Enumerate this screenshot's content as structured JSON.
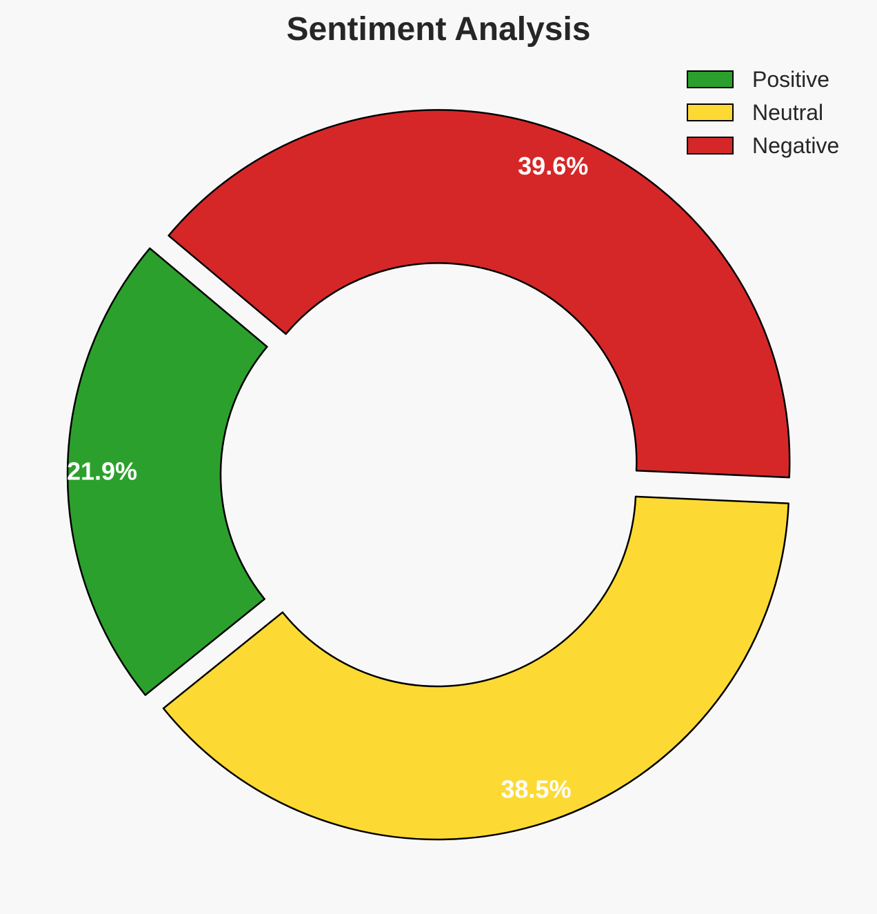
{
  "chart_data": {
    "type": "pie",
    "title": "Sentiment Analysis",
    "donut": true,
    "categories": [
      "Positive",
      "Neutral",
      "Negative"
    ],
    "values": [
      21.9,
      38.5,
      39.6
    ],
    "value_labels": [
      "21.9%",
      "38.5%",
      "39.6%"
    ],
    "colors": [
      "#2ca02c",
      "#fdda33",
      "#d62728"
    ],
    "exploded": true,
    "legend": {
      "placement": "top-right",
      "entries": [
        "Positive",
        "Neutral",
        "Negative"
      ]
    }
  }
}
